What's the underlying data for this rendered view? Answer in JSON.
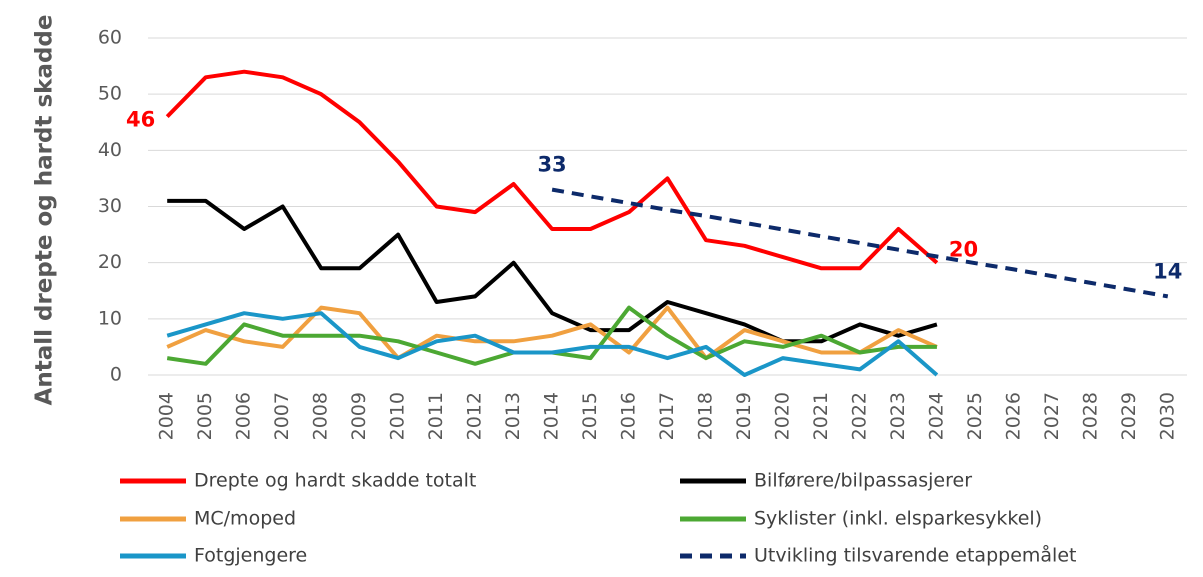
{
  "chart_data": {
    "type": "line",
    "y_label": "Antall drepte og hardt skadde",
    "categories": [
      "2004",
      "2005",
      "2006",
      "2007",
      "2008",
      "2009",
      "2010",
      "2011",
      "2012",
      "2013",
      "2014",
      "2015",
      "2016",
      "2017",
      "2018",
      "2019",
      "2020",
      "2021",
      "2022",
      "2023",
      "2024",
      "2025",
      "2026",
      "2027",
      "2028",
      "2029",
      "2030"
    ],
    "ylim": [
      0,
      60
    ],
    "yticks": [
      0,
      10,
      20,
      30,
      40,
      50,
      60
    ],
    "series": [
      {
        "name": "Drepte og hardt skadde totalt",
        "color": "#ff0000",
        "values": [
          46,
          53,
          54,
          53,
          50,
          45,
          38,
          30,
          29,
          34,
          26,
          26,
          29,
          35,
          24,
          23,
          21,
          19,
          19,
          26,
          20,
          null,
          null,
          null,
          null,
          null,
          null
        ]
      },
      {
        "name": "Bilførere/bilpassasjerer",
        "color": "#000000",
        "values": [
          31,
          31,
          26,
          30,
          19,
          19,
          25,
          13,
          14,
          20,
          11,
          8,
          8,
          13,
          11,
          9,
          6,
          6,
          9,
          7,
          9,
          null,
          null,
          null,
          null,
          null,
          null
        ]
      },
      {
        "name": "MC/moped",
        "color": "#f0a040",
        "values": [
          5,
          8,
          6,
          5,
          12,
          11,
          3,
          7,
          6,
          6,
          7,
          9,
          4,
          12,
          3,
          8,
          6,
          4,
          4,
          8,
          5,
          null,
          null,
          null,
          null,
          null,
          null
        ]
      },
      {
        "name": "Syklister (inkl. elsparkesykkel)",
        "color": "#4ca833",
        "values": [
          3,
          2,
          9,
          7,
          7,
          7,
          6,
          4,
          2,
          4,
          4,
          3,
          12,
          7,
          3,
          6,
          5,
          7,
          4,
          5,
          5,
          null,
          null,
          null,
          null,
          null,
          null
        ]
      },
      {
        "name": "Fotgjengere",
        "color": "#1a96c8",
        "values": [
          7,
          9,
          11,
          10,
          11,
          5,
          3,
          6,
          7,
          4,
          4,
          5,
          5,
          3,
          5,
          0,
          3,
          2,
          1,
          6,
          0,
          null,
          null,
          null,
          null,
          null,
          null
        ]
      },
      {
        "name": "Utvikling tilsvarende etappemålet",
        "color": "#0d2a6a",
        "dashed": true,
        "values": [
          null,
          null,
          null,
          null,
          null,
          null,
          null,
          null,
          null,
          null,
          33,
          31.8,
          30.6,
          29.4,
          28.3,
          27.1,
          25.9,
          24.7,
          23.5,
          22.3,
          21.1,
          19.9,
          18.8,
          17.6,
          16.4,
          15.2,
          14
        ]
      }
    ]
  }
}
